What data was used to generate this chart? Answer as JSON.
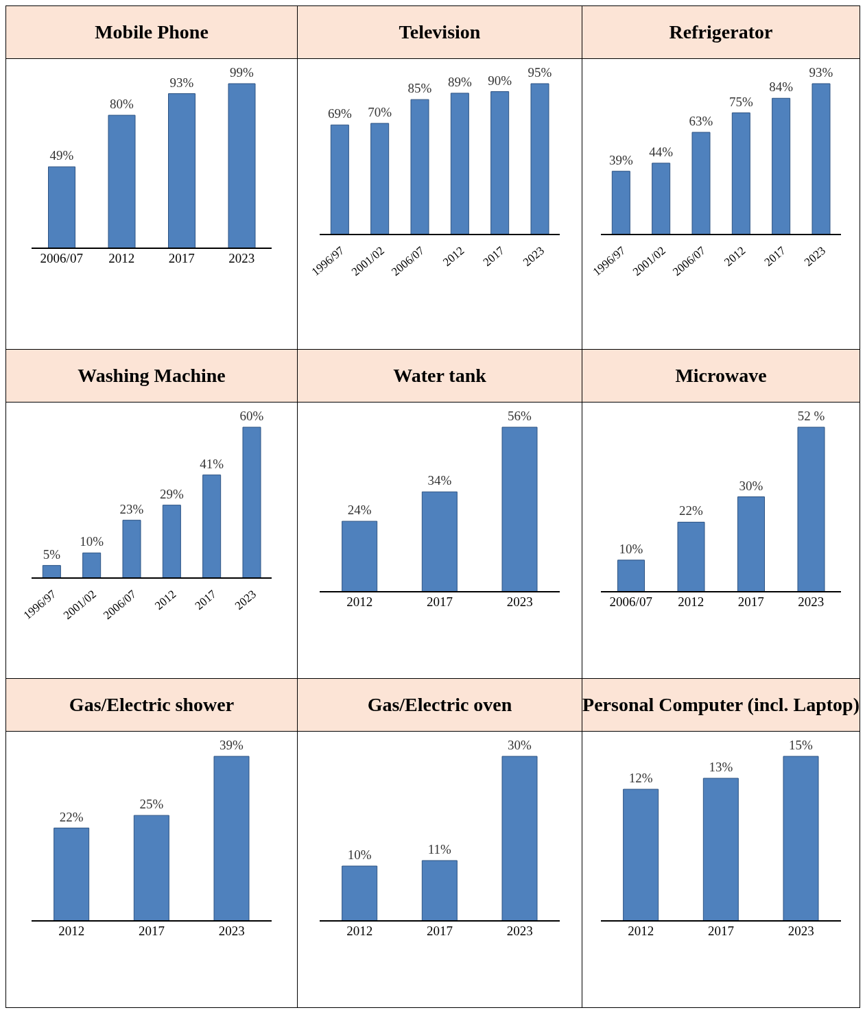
{
  "chart_data": [
    {
      "type": "bar",
      "title": "Mobile Phone",
      "categories": [
        "2006/07",
        "2012",
        "2017",
        "2023"
      ],
      "values": [
        49,
        80,
        93,
        99
      ],
      "value_labels": [
        "49%",
        "80%",
        "93%",
        "99%"
      ],
      "color": "#4f81bd"
    },
    {
      "type": "bar",
      "title": "Television",
      "categories": [
        "1996/97",
        "2001/02",
        "2006/07",
        "2012",
        "2017",
        "2023"
      ],
      "values": [
        69,
        70,
        85,
        89,
        90,
        95
      ],
      "value_labels": [
        "69%",
        "70%",
        "85%",
        "89%",
        "90%",
        "95%"
      ],
      "color": "#4f81bd"
    },
    {
      "type": "bar",
      "title": "Refrigerator",
      "categories": [
        "1996/97",
        "2001/02",
        "2006/07",
        "2012",
        "2017",
        "2023"
      ],
      "values": [
        39,
        44,
        63,
        75,
        84,
        93
      ],
      "value_labels": [
        "39%",
        "44%",
        "63%",
        "75%",
        "84%",
        "93%"
      ],
      "color": "#4f81bd"
    },
    {
      "type": "bar",
      "title": "Washing Machine",
      "categories": [
        "1996/97",
        "2001/02",
        "2006/07",
        "2012",
        "2017",
        "2023"
      ],
      "values": [
        5,
        10,
        23,
        29,
        41,
        60
      ],
      "value_labels": [
        "5%",
        "10%",
        "23%",
        "29%",
        "41%",
        "60%"
      ],
      "color": "#4f81bd"
    },
    {
      "type": "bar",
      "title": "Water tank",
      "categories": [
        "2012",
        "2017",
        "2023"
      ],
      "values": [
        24,
        34,
        56
      ],
      "value_labels": [
        "24%",
        "34%",
        "56%"
      ],
      "color": "#4f81bd"
    },
    {
      "type": "bar",
      "title": "Microwave",
      "categories": [
        "2006/07",
        "2012",
        "2017",
        "2023"
      ],
      "values": [
        10,
        22,
        30,
        52
      ],
      "value_labels": [
        "10%",
        "22%",
        "30%",
        "52 %"
      ],
      "color": "#4f81bd"
    },
    {
      "type": "bar",
      "title": "Gas/Electric shower",
      "categories": [
        "2012",
        "2017",
        "2023"
      ],
      "values": [
        22,
        25,
        39
      ],
      "value_labels": [
        "22%",
        "25%",
        "39%"
      ],
      "color": "#4f81bd"
    },
    {
      "type": "bar",
      "title": "Gas/Electric oven",
      "categories": [
        "2012",
        "2017",
        "2023"
      ],
      "values": [
        10,
        11,
        30
      ],
      "value_labels": [
        "10%",
        "11%",
        "30%"
      ],
      "color": "#4f81bd"
    },
    {
      "type": "bar",
      "title": "Personal Computer (incl. Laptop)",
      "categories": [
        "2012",
        "2017",
        "2023"
      ],
      "values": [
        12,
        13,
        15
      ],
      "value_labels": [
        "12%",
        "13%",
        "15%"
      ],
      "color": "#4f81bd"
    }
  ]
}
